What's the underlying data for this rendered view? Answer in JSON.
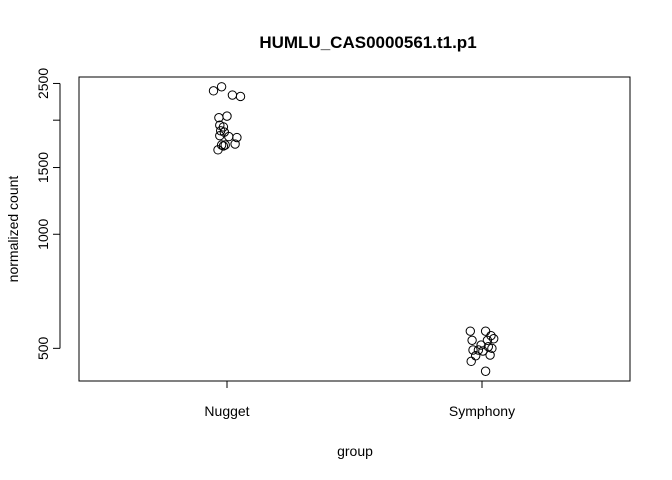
{
  "chart_data": {
    "type": "scatter",
    "title": "HUMLU_CAS0000561.t1.p1",
    "xlabel": "group",
    "ylabel": "normalized count",
    "categories": [
      "Nugget",
      "Symphony"
    ],
    "y_scale": "log",
    "ylim": [
      410,
      2600
    ],
    "yticks": [
      500,
      1000,
      1500,
      2000,
      2500
    ],
    "ytick_labels": [
      "500",
      "1000",
      "1500",
      "",
      "2500"
    ],
    "grid": false,
    "legend": "none",
    "series": [
      {
        "category": "Nugget",
        "points": [
          {
            "jitter": -0.15,
            "y": 2390
          },
          {
            "jitter": -0.06,
            "y": 2450
          },
          {
            "jitter": 0.06,
            "y": 2330
          },
          {
            "jitter": 0.15,
            "y": 2310
          },
          {
            "jitter": -0.09,
            "y": 2030
          },
          {
            "jitter": 0.0,
            "y": 2050
          },
          {
            "jitter": -0.08,
            "y": 1940
          },
          {
            "jitter": -0.04,
            "y": 1920
          },
          {
            "jitter": -0.07,
            "y": 1875
          },
          {
            "jitter": -0.03,
            "y": 1860
          },
          {
            "jitter": -0.08,
            "y": 1820
          },
          {
            "jitter": 0.02,
            "y": 1810
          },
          {
            "jitter": 0.11,
            "y": 1800
          },
          {
            "jitter": 0.09,
            "y": 1730
          },
          {
            "jitter": -0.06,
            "y": 1720
          },
          {
            "jitter": -0.02,
            "y": 1720
          },
          {
            "jitter": -0.04,
            "y": 1710
          },
          {
            "jitter": -0.1,
            "y": 1670
          }
        ]
      },
      {
        "category": "Symphony",
        "points": [
          {
            "jitter": -0.13,
            "y": 555
          },
          {
            "jitter": 0.04,
            "y": 555
          },
          {
            "jitter": 0.1,
            "y": 540
          },
          {
            "jitter": 0.13,
            "y": 530
          },
          {
            "jitter": -0.11,
            "y": 525
          },
          {
            "jitter": 0.06,
            "y": 525
          },
          {
            "jitter": -0.01,
            "y": 510
          },
          {
            "jitter": 0.07,
            "y": 505
          },
          {
            "jitter": 0.11,
            "y": 500
          },
          {
            "jitter": -0.1,
            "y": 495
          },
          {
            "jitter": -0.04,
            "y": 495
          },
          {
            "jitter": 0.01,
            "y": 492
          },
          {
            "jitter": 0.09,
            "y": 480
          },
          {
            "jitter": -0.07,
            "y": 478
          },
          {
            "jitter": -0.12,
            "y": 462
          },
          {
            "jitter": 0.04,
            "y": 435
          }
        ]
      }
    ]
  }
}
